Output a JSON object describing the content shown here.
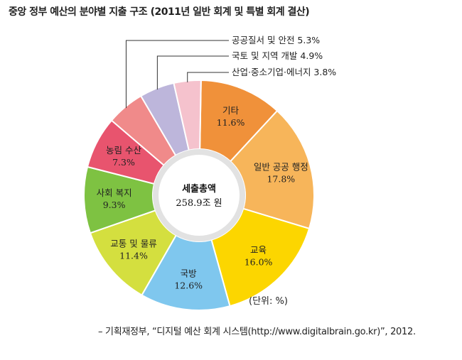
{
  "title": "중앙 정부 예산의 분야별 지출 구조 (2011년 일반 회계 및 특별 회계 결산)",
  "unit": "(단위: %)",
  "source": "– 기획재정부, “디지털 예산 회계 시스템(http://www.digitalbrain.go.kr)”, 2012.",
  "chart_data": {
    "type": "pie",
    "style": "donut",
    "center_title": "세출총액",
    "center_value": "258.9조 원",
    "slices": [
      {
        "label": "기타",
        "value": 11.6,
        "display": "11.6%",
        "color": "#f0913a"
      },
      {
        "label": "일반 공공 행정",
        "value": 17.8,
        "display": "17.8%",
        "color": "#f7b55a"
      },
      {
        "label": "교육",
        "value": 16.0,
        "display": "16.0%",
        "color": "#fcd600"
      },
      {
        "label": "국방",
        "value": 12.6,
        "display": "12.6%",
        "color": "#7fc7ee"
      },
      {
        "label": "교통 및 물류",
        "value": 11.4,
        "display": "11.4%",
        "color": "#d4df3f"
      },
      {
        "label": "사회 복지",
        "value": 9.3,
        "display": "9.3%",
        "color": "#7ec242"
      },
      {
        "label": "농림 수산",
        "value": 7.3,
        "display": "7.3%",
        "color": "#e8546e"
      },
      {
        "label": "공공질서 및 안전",
        "value": 5.3,
        "display": "5.3%",
        "color": "#f08a8a"
      },
      {
        "label": "국토 및 지역 개발",
        "value": 4.9,
        "display": "4.9%",
        "color": "#bdb6db"
      },
      {
        "label": "산업·중소기업·에너지",
        "value": 3.8,
        "display": "3.8%",
        "color": "#f5c2cd"
      }
    ]
  }
}
